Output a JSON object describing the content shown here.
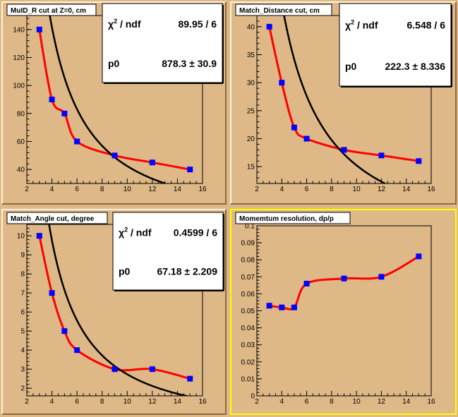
{
  "chart_data": [
    {
      "type": "scatter",
      "title": "MuID_R cut at Z=0, cm",
      "x": [
        3,
        4,
        5,
        6,
        9,
        12,
        15
      ],
      "y": [
        140,
        90,
        80,
        60,
        50,
        45,
        40
      ],
      "xlim": [
        2,
        16
      ],
      "ylim": [
        30,
        150
      ],
      "xticks": [
        2,
        4,
        6,
        8,
        10,
        12,
        14,
        16
      ],
      "yticks": [
        40,
        60,
        80,
        100,
        120,
        140
      ],
      "fit": {
        "p0": 878.3
      },
      "stats": {
        "chi2_label": "ndf",
        "chi2_value": "89.95 / 6",
        "p0_label": "p0",
        "p0_value": "878.3 ±  30.9"
      },
      "marker_color": "#0000ff",
      "curve_color": "#ff0000",
      "fit_color": "#000000"
    },
    {
      "type": "scatter",
      "title": "Match_Distance cut, cm",
      "x": [
        3,
        4,
        5,
        6,
        9,
        12,
        15
      ],
      "y": [
        40,
        30,
        22,
        20,
        18,
        17,
        16
      ],
      "xlim": [
        2,
        16
      ],
      "ylim": [
        12,
        42
      ],
      "xticks": [
        2,
        4,
        6,
        8,
        10,
        12,
        14,
        16
      ],
      "yticks": [
        15,
        20,
        25,
        30,
        35,
        40
      ],
      "fit": {
        "p0": 222.3
      },
      "stats": {
        "chi2_label": "ndf",
        "chi2_value": "6.548 / 6",
        "p0_label": "p0",
        "p0_value": "222.3 ± 8.336"
      },
      "marker_color": "#0000ff",
      "curve_color": "#ff0000",
      "fit_color": "#000000"
    },
    {
      "type": "scatter",
      "title": "Match_Angle cut, degree",
      "x": [
        3,
        4,
        5,
        6,
        9,
        12,
        15
      ],
      "y": [
        10,
        7,
        5,
        4,
        3,
        3,
        2.5
      ],
      "xlim": [
        2,
        16
      ],
      "ylim": [
        1.6,
        10.6
      ],
      "xticks": [
        2,
        4,
        6,
        8,
        10,
        12,
        14,
        16
      ],
      "yticks": [
        2,
        3,
        4,
        5,
        6,
        7,
        8,
        9,
        10
      ],
      "fit": {
        "p0": 67.18
      },
      "stats": {
        "chi2_label": "ndf",
        "chi2_value": "0.4599 / 6",
        "p0_label": "p0",
        "p0_value": "67.18 ± 2.209"
      },
      "marker_color": "#0000ff",
      "curve_color": "#ff0000",
      "fit_color": "#000000"
    },
    {
      "type": "scatter",
      "title": "Momemtum resolution, dp/p",
      "x": [
        3,
        4,
        5,
        6,
        9,
        12,
        15
      ],
      "y": [
        0.053,
        0.052,
        0.052,
        0.066,
        0.069,
        0.07,
        0.082
      ],
      "xlim": [
        2,
        16
      ],
      "ylim": [
        0,
        0.1
      ],
      "xticks": [
        2,
        4,
        6,
        8,
        10,
        12,
        14,
        16
      ],
      "yticks": [
        0,
        0.01,
        0.02,
        0.03,
        0.04,
        0.05,
        0.06,
        0.07,
        0.08,
        0.09,
        0.1
      ],
      "marker_color": "#0000ff",
      "curve_color": "#ff0000",
      "highlight_color": "#ffff00"
    }
  ]
}
